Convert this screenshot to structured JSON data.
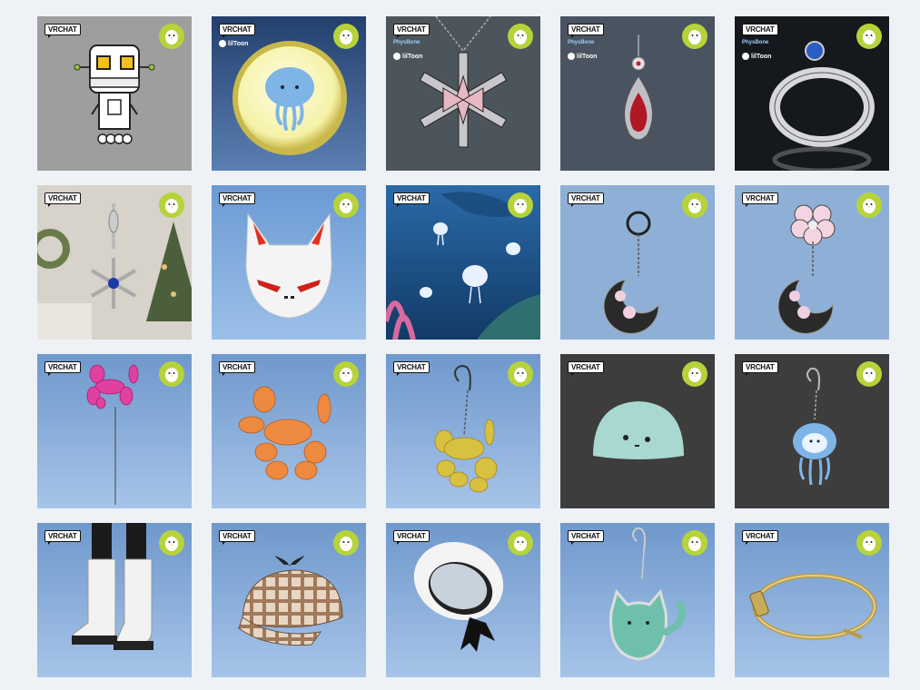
{
  "badge_text": "VRCHAT",
  "tags": {
    "liltoon": "lilToon",
    "physbone": "PhysBone"
  },
  "colors": {
    "page_bg": "#eef2f7",
    "badge_green": "#b6d33a"
  },
  "products": [
    {
      "name": "robot",
      "bg": "#9e9e9e",
      "tags": []
    },
    {
      "name": "jellyfish-coin",
      "bg": "#2e4f80",
      "tags": [
        "liltoon"
      ]
    },
    {
      "name": "snowflake-necklace",
      "bg": "#4d555c",
      "tags": [
        "physbone",
        "liltoon"
      ]
    },
    {
      "name": "ruby-drop-necklace",
      "bg": "#4a5360",
      "tags": [
        "physbone",
        "liltoon"
      ]
    },
    {
      "name": "sapphire-ring",
      "bg": "#15181c",
      "tags": [
        "physbone",
        "liltoon"
      ]
    },
    {
      "name": "snowflake-charm",
      "bg": "#cfc9c0",
      "tags": []
    },
    {
      "name": "fox-mask",
      "bg": "#7aa6d8",
      "tags": []
    },
    {
      "name": "jellyfish-ocean",
      "bg": "#1e4f85",
      "tags": []
    },
    {
      "name": "moon-earring-ring",
      "bg": "#8fb0d6",
      "tags": []
    },
    {
      "name": "moon-earring-flower",
      "bg": "#8fb0d6",
      "tags": []
    },
    {
      "name": "pink-balloon-dog",
      "bg": "#7ea4d0",
      "tags": []
    },
    {
      "name": "orange-balloon-dog",
      "bg": "#7ea4d0",
      "tags": []
    },
    {
      "name": "gold-balloon-earring",
      "bg": "#7ea4d0",
      "tags": []
    },
    {
      "name": "mochi-slime",
      "bg": "#3d3d3d",
      "tags": []
    },
    {
      "name": "jellyfish-earring",
      "bg": "#3d3d3d",
      "tags": []
    },
    {
      "name": "white-boots",
      "bg": "#7ea4d0",
      "tags": []
    },
    {
      "name": "plaid-hat",
      "bg": "#7ea4d0",
      "tags": []
    },
    {
      "name": "white-beret",
      "bg": "#7ea4d0",
      "tags": []
    },
    {
      "name": "cat-earring",
      "bg": "#7ea4d0",
      "tags": []
    },
    {
      "name": "gold-nail-bracelet",
      "bg": "#7ea4d0",
      "tags": []
    }
  ]
}
